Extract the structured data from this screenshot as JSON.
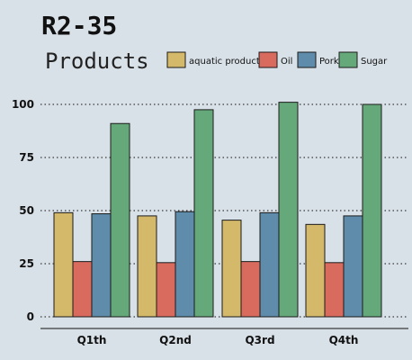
{
  "chart_data": {
    "type": "bar",
    "title": "R2-35",
    "subtitle": "Products",
    "categories": [
      "Q1th",
      "Q2nd",
      "Q3rd",
      "Q4th"
    ],
    "series": [
      {
        "name": "aquatic product",
        "color": "#d4b96a",
        "values": [
          49,
          47.5,
          45.5,
          43.5
        ]
      },
      {
        "name": "Oil",
        "color": "#d86a5e",
        "values": [
          26,
          25.5,
          26,
          25.5
        ]
      },
      {
        "name": "Pork",
        "color": "#5f8cab",
        "values": [
          48.5,
          49.5,
          49,
          47.5
        ]
      },
      {
        "name": "Sugar",
        "color": "#65a87a",
        "values": [
          91,
          97.5,
          101,
          100
        ]
      }
    ],
    "yticks": [
      "0",
      "25",
      "50",
      "75",
      "100"
    ],
    "ylim": [
      0,
      100
    ],
    "xlabel": "",
    "ylabel": "",
    "grid": "horizontal-dotted",
    "legend_position": "top-right"
  }
}
